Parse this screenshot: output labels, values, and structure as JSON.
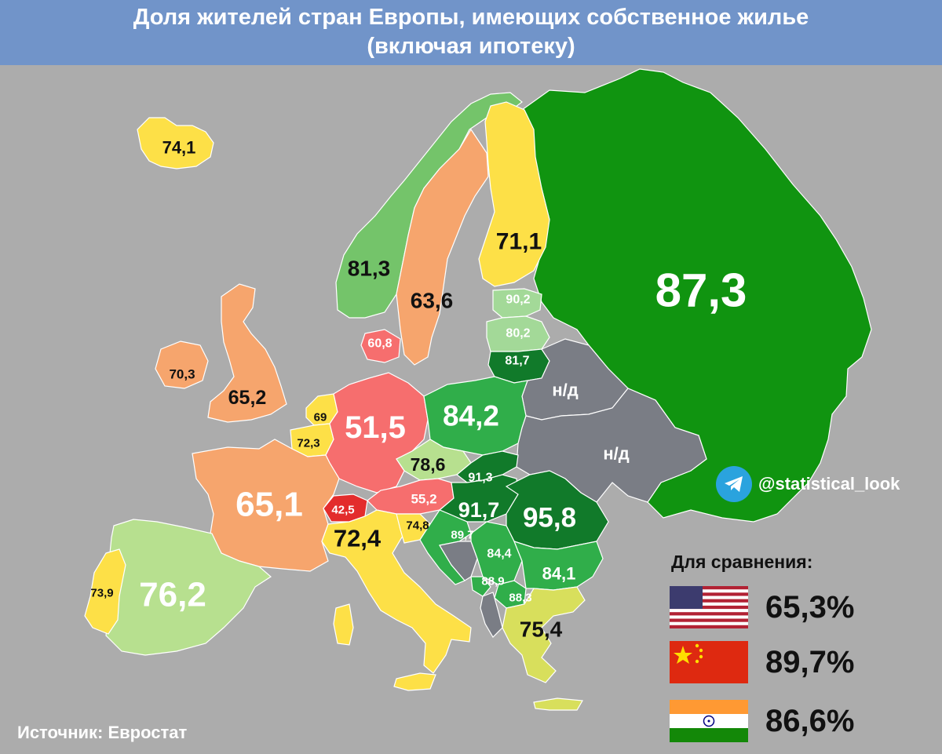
{
  "title": {
    "line1": "Доля жителей стран Европы, имеющих собственное жилье",
    "line2": "(включая ипотеку)"
  },
  "regions": [
    {
      "id": "russia",
      "value": "87,3",
      "color": "#109410"
    },
    {
      "id": "iceland",
      "value": "74,1",
      "color": "#fde047"
    },
    {
      "id": "norway",
      "value": "81,3",
      "color": "#74c46a"
    },
    {
      "id": "sweden",
      "value": "63,6",
      "color": "#f6a56d"
    },
    {
      "id": "finland",
      "value": "71,1",
      "color": "#fde047"
    },
    {
      "id": "estonia",
      "value": "90,2",
      "color": "#a3d998"
    },
    {
      "id": "latvia",
      "value": "80,2",
      "color": "#a3d998"
    },
    {
      "id": "lithuania",
      "value": "81,7",
      "color": "#117a2a"
    },
    {
      "id": "belarus",
      "value": "н/д",
      "color": "#7a7d85"
    },
    {
      "id": "ukraine",
      "value": "н/д",
      "color": "#7a7d85"
    },
    {
      "id": "ireland",
      "value": "70,3",
      "color": "#f6a56d"
    },
    {
      "id": "uk",
      "value": "65,2",
      "color": "#f6a56d"
    },
    {
      "id": "denmark",
      "value": "60,8",
      "color": "#f66e6e"
    },
    {
      "id": "netherlands",
      "value": "69",
      "color": "#fde047"
    },
    {
      "id": "belgium",
      "value": "72,3",
      "color": "#fde047"
    },
    {
      "id": "germany",
      "value": "51,5",
      "color": "#f66e6e"
    },
    {
      "id": "poland",
      "value": "84,2",
      "color": "#30ae4a"
    },
    {
      "id": "czechia",
      "value": "78,6",
      "color": "#b7e08f"
    },
    {
      "id": "slovakia",
      "value": "91,3",
      "color": "#117a2a"
    },
    {
      "id": "france",
      "value": "65,1",
      "color": "#f6a56d"
    },
    {
      "id": "switzerland",
      "value": "42,5",
      "color": "#e32c2c"
    },
    {
      "id": "austria",
      "value": "55,2",
      "color": "#f66e6e"
    },
    {
      "id": "hungary",
      "value": "91,7",
      "color": "#117a2a"
    },
    {
      "id": "romania",
      "value": "95,8",
      "color": "#117a2a"
    },
    {
      "id": "italy",
      "value": "72,4",
      "color": "#fde047"
    },
    {
      "id": "slovenia",
      "value": "74,8",
      "color": "#fde047"
    },
    {
      "id": "croatia",
      "value": "89,7",
      "color": "#30ae4a"
    },
    {
      "id": "serbia",
      "value": "84,4",
      "color": "#30ae4a"
    },
    {
      "id": "bulgaria",
      "value": "84,1",
      "color": "#30ae4a"
    },
    {
      "id": "montenegro",
      "value": "88,9",
      "color": "#30ae4a"
    },
    {
      "id": "north-macedonia",
      "value": "88,3",
      "color": "#30ae4a"
    },
    {
      "id": "greece",
      "value": "75,4",
      "color": "#d8df5c"
    },
    {
      "id": "portugal",
      "value": "73,9",
      "color": "#fde047"
    },
    {
      "id": "spain",
      "value": "76,2",
      "color": "#b7e08f"
    }
  ],
  "comparison": {
    "title": "Для сравнения:",
    "items": [
      {
        "flag": "usa-flag-icon",
        "value": "65,3%"
      },
      {
        "flag": "china-flag-icon",
        "value": "89,7%"
      },
      {
        "flag": "india-flag-icon",
        "value": "86,6%"
      }
    ]
  },
  "telegram": {
    "handle": "@statistical_look",
    "icon": "telegram-icon"
  },
  "source": "Источник: Евростат"
}
